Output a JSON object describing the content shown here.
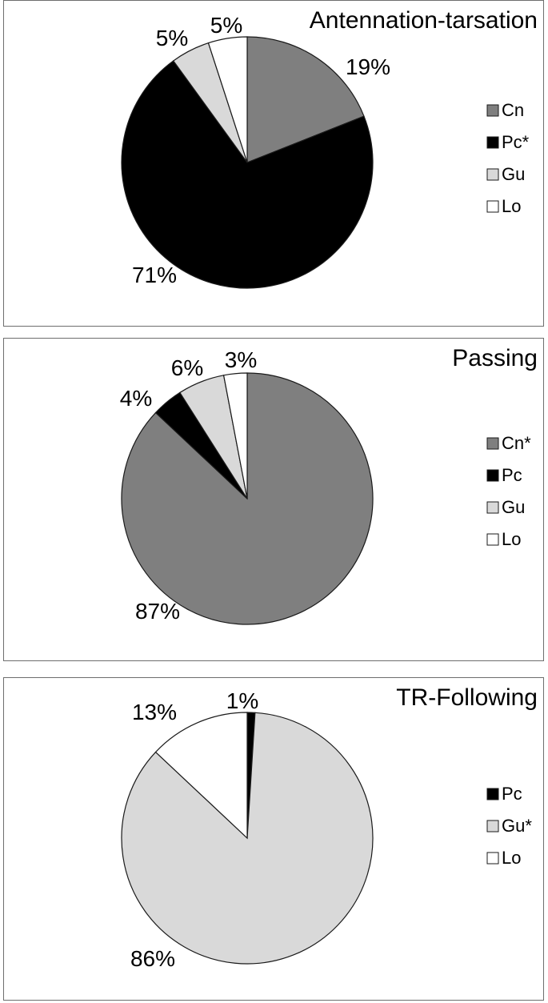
{
  "chart_data": [
    {
      "type": "pie",
      "title": "Antennation-tarsation",
      "categories": [
        "Cn",
        "Pc*",
        "Gu",
        "Lo"
      ],
      "values": [
        19,
        71,
        5,
        5
      ],
      "labels": [
        "19%",
        "71%",
        "5%",
        "5%"
      ],
      "colors": [
        "#7f7f7f",
        "#000000",
        "#d9d9d9",
        "#ffffff"
      ],
      "legend": "right"
    },
    {
      "type": "pie",
      "title": "Passing",
      "categories": [
        "Cn*",
        "Pc",
        "Gu",
        "Lo"
      ],
      "values": [
        87,
        4,
        6,
        3
      ],
      "labels": [
        "87%",
        "4%",
        "6%",
        "3%"
      ],
      "colors": [
        "#7f7f7f",
        "#000000",
        "#d9d9d9",
        "#ffffff"
      ],
      "legend": "right"
    },
    {
      "type": "pie",
      "title": "TR-Following",
      "categories": [
        "Pc",
        "Gu*",
        "Lo"
      ],
      "values": [
        1,
        86,
        13
      ],
      "labels": [
        "1%",
        "86%",
        "13%"
      ],
      "colors": [
        "#000000",
        "#d9d9d9",
        "#ffffff"
      ],
      "legend": "right"
    }
  ]
}
